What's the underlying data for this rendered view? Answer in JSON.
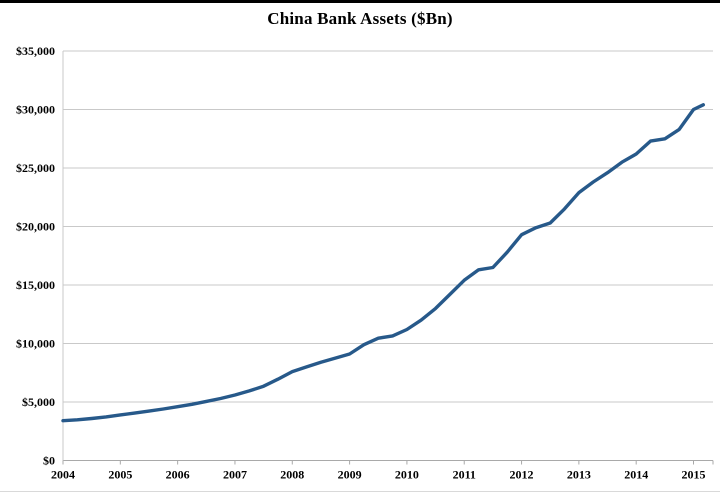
{
  "title": "China Bank Assets ($Bn)",
  "colors": {
    "line": "#27598A",
    "gridline": "#C9C9C9",
    "axis": "#A9A9A9",
    "text": "#000000",
    "background": "#FFFFFF",
    "top_border": "#000000"
  },
  "chart_data": {
    "type": "line",
    "title": "China Bank Assets ($Bn)",
    "series_name": "China Bank Assets",
    "unit": "$Bn",
    "xlabel": "",
    "ylabel": "",
    "legend": "none",
    "grid": "horizontal",
    "xlim": [
      2004,
      2015.34
    ],
    "ylim": [
      0,
      35000
    ],
    "x_tick_values": [
      2004,
      2005,
      2006,
      2007,
      2008,
      2009,
      2010,
      2011,
      2012,
      2013,
      2014,
      2015
    ],
    "x_ticks": [
      "2004",
      "2005",
      "2006",
      "2007",
      "2008",
      "2009",
      "2010",
      "2011",
      "2012",
      "2013",
      "2014",
      "2015"
    ],
    "y_tick_values": [
      0,
      5000,
      10000,
      15000,
      20000,
      25000,
      30000,
      35000
    ],
    "y_ticks": [
      "$0",
      "$5,000",
      "$10,000",
      "$15,000",
      "$20,000",
      "$25,000",
      "$30,000",
      "$35,000"
    ],
    "x": [
      2004.0,
      2004.25,
      2004.5,
      2004.75,
      2005.0,
      2005.25,
      2005.5,
      2005.75,
      2006.0,
      2006.25,
      2006.5,
      2006.75,
      2007.0,
      2007.25,
      2007.5,
      2007.75,
      2008.0,
      2008.25,
      2008.5,
      2008.75,
      2009.0,
      2009.25,
      2009.5,
      2009.75,
      2010.0,
      2010.25,
      2010.5,
      2010.75,
      2011.0,
      2011.25,
      2011.5,
      2011.75,
      2012.0,
      2012.25,
      2012.5,
      2012.75,
      2013.0,
      2013.25,
      2013.5,
      2013.75,
      2014.0,
      2014.25,
      2014.5,
      2014.75,
      2015.0,
      2015.17
    ],
    "values": [
      3400,
      3480,
      3590,
      3730,
      3900,
      4050,
      4220,
      4400,
      4600,
      4800,
      5050,
      5300,
      5600,
      5950,
      6350,
      6950,
      7600,
      8000,
      8400,
      8750,
      9100,
      9900,
      10450,
      10650,
      11200,
      12000,
      13000,
      14200,
      15400,
      16300,
      16500,
      17800,
      19300,
      19900,
      20300,
      21500,
      22900,
      23800,
      24600,
      25500,
      26200,
      27300,
      27500,
      28300,
      30000,
      30400
    ]
  }
}
